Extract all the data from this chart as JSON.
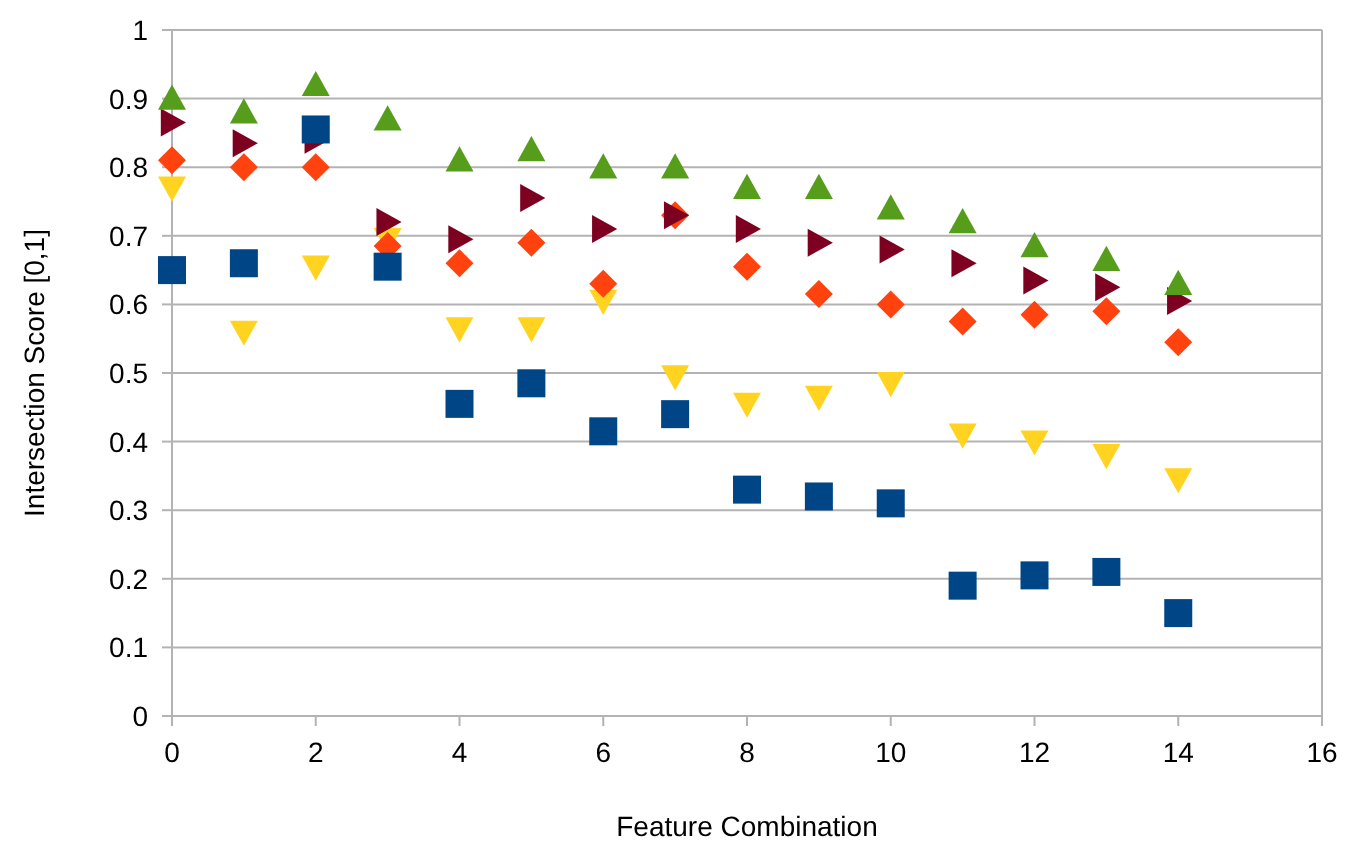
{
  "chart_data": {
    "type": "scatter",
    "xlabel": "Feature Combination",
    "ylabel": "Intersection Score [0,1]",
    "x": [
      0,
      1,
      2,
      3,
      4,
      5,
      6,
      7,
      8,
      9,
      10,
      11,
      12,
      13,
      14
    ],
    "xlim": [
      0,
      16
    ],
    "xticks": [
      0,
      2,
      4,
      6,
      8,
      10,
      12,
      14,
      16
    ],
    "ylim": [
      0,
      1
    ],
    "yticks": [
      0,
      0.1,
      0.2,
      0.3,
      0.4,
      0.5,
      0.6,
      0.7,
      0.8,
      0.9,
      1
    ],
    "grid": "y",
    "series": [
      {
        "color": "#ffd320",
        "marker": "triangle-down",
        "values": [
          0.77,
          0.56,
          0.655,
          0.695,
          0.565,
          0.565,
          0.605,
          0.495,
          0.455,
          0.465,
          0.485,
          0.41,
          0.4,
          0.38,
          0.345
        ]
      },
      {
        "color": "#ff420e",
        "marker": "diamond",
        "values": [
          0.81,
          0.8,
          0.8,
          0.685,
          0.66,
          0.69,
          0.63,
          0.73,
          0.655,
          0.615,
          0.6,
          0.575,
          0.585,
          0.59,
          0.545
        ]
      },
      {
        "color": "#7e0021",
        "marker": "triangle-right",
        "values": [
          0.865,
          0.835,
          0.84,
          0.72,
          0.695,
          0.755,
          0.71,
          0.73,
          0.71,
          0.69,
          0.68,
          0.66,
          0.635,
          0.625,
          0.605
        ]
      },
      {
        "color": "#579d1c",
        "marker": "triangle",
        "values": [
          0.9,
          0.88,
          0.92,
          0.87,
          0.81,
          0.825,
          0.8,
          0.8,
          0.77,
          0.77,
          0.74,
          0.72,
          0.685,
          0.665,
          0.63
        ]
      },
      {
        "color": "#004586",
        "marker": "square",
        "values": [
          0.65,
          0.66,
          0.855,
          0.655,
          0.455,
          0.485,
          0.415,
          0.44,
          0.33,
          0.32,
          0.31,
          0.19,
          0.205,
          0.21,
          0.15
        ]
      }
    ]
  }
}
